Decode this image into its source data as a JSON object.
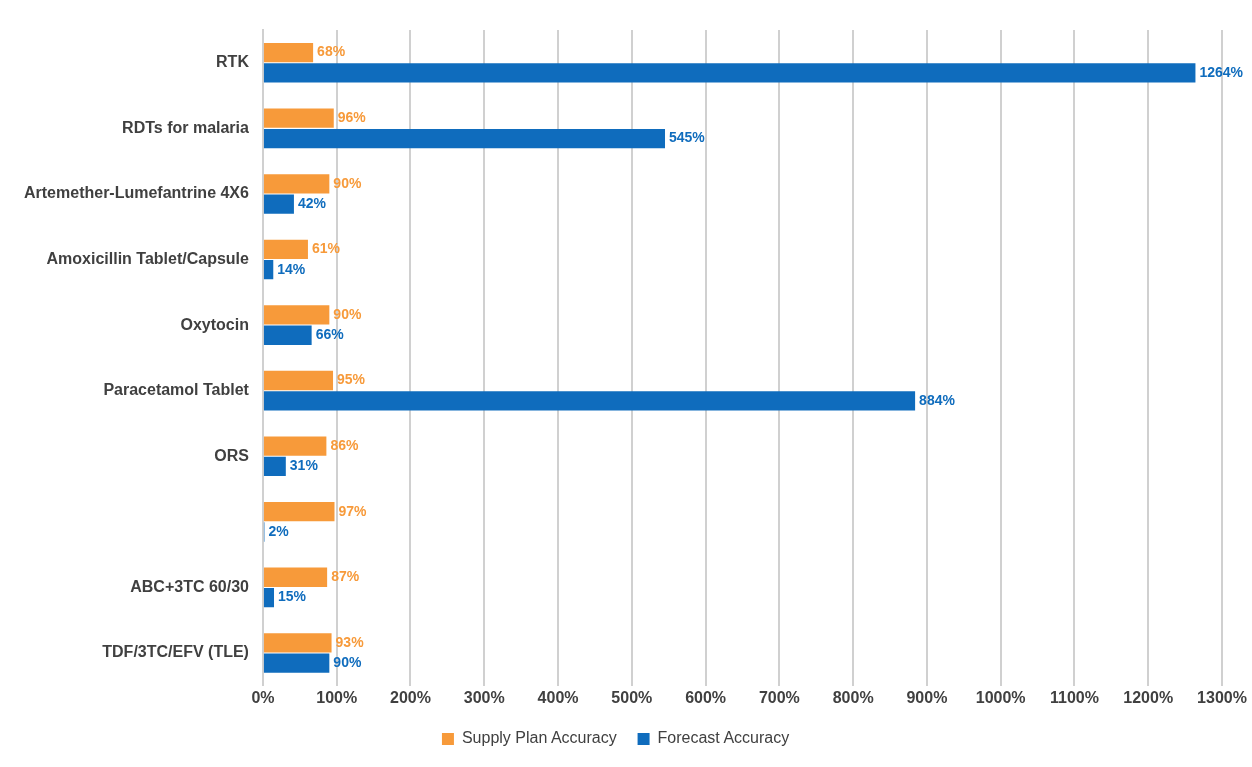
{
  "chart_data": {
    "type": "bar",
    "orientation": "horizontal",
    "categories": [
      "RTK",
      "RDTs for malaria",
      "Artemether-Lumefantrine 4X6",
      "Amoxicillin Tablet/Capsule",
      "Oxytocin",
      "Paracetamol Tablet",
      "ORS",
      null,
      "ABC+3TC 60/30",
      "TDF/3TC/EFV (TLE)"
    ],
    "series": [
      {
        "name": "Supply Plan Accuracy",
        "color": "#f79a3a",
        "values": [
          68,
          96,
          90,
          61,
          90,
          95,
          86,
          97,
          87,
          93
        ],
        "value_labels": [
          "68%",
          "96%",
          "90%",
          "61%",
          "90%",
          "95%",
          "86%",
          "97%",
          "87%",
          "93%"
        ]
      },
      {
        "name": "Forecast Accuracy",
        "color": "#0f6cbd",
        "values": [
          1264,
          545,
          42,
          14,
          66,
          884,
          31,
          2,
          15,
          90
        ],
        "value_labels": [
          "1264%",
          "545%",
          "42%",
          "14%",
          "66%",
          "884%",
          "31%",
          "2%",
          "15%",
          "90%"
        ]
      }
    ],
    "xlim": [
      0,
      1300
    ],
    "xticks": [
      {
        "value": 0,
        "label": "0%"
      },
      {
        "value": 100,
        "label": "100%"
      },
      {
        "value": 200,
        "label": "200%"
      },
      {
        "value": 300,
        "label": "300%"
      },
      {
        "value": 400,
        "label": "400%"
      },
      {
        "value": 500,
        "label": "500%"
      },
      {
        "value": 600,
        "label": "600%"
      },
      {
        "value": 700,
        "label": "700%"
      },
      {
        "value": 800,
        "label": "800%"
      },
      {
        "value": 900,
        "label": "900%"
      },
      {
        "value": 1000,
        "label": "1000%"
      },
      {
        "value": 1100,
        "label": "1100%"
      },
      {
        "value": 1200,
        "label": "1200%"
      },
      {
        "value": 1300,
        "label": "1300%"
      }
    ],
    "grid": "x",
    "legend": "bottom"
  }
}
